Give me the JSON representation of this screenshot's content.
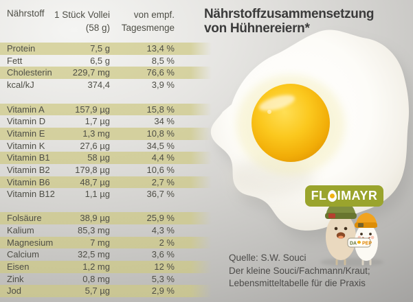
{
  "title": {
    "line1": "Nährstoffzusammensetzung",
    "line2": "von Hühnereiern*"
  },
  "table": {
    "header": {
      "nutrient": "Nährstoff",
      "amount_line1": "1 Stück Vollei",
      "amount_line2": "(58 g)",
      "daily_line1": "von empf.",
      "daily_line2": "Tagesmenge"
    },
    "groups": [
      {
        "name": "macros",
        "rows": [
          {
            "label": "Protein",
            "value": "7,5 g",
            "percent": "13,4 %"
          },
          {
            "label": "Fett",
            "value": "6,5 g",
            "percent": "8,5 %"
          },
          {
            "label": "Cholesterin",
            "value": "229,7 mg",
            "percent": "76,6 %"
          },
          {
            "label": "kcal/kJ",
            "value": "374,4",
            "percent": "3,9 %"
          }
        ]
      },
      {
        "name": "vitamins",
        "rows": [
          {
            "label": "Vitamin A",
            "value": "157,9 µg",
            "percent": "15,8 %"
          },
          {
            "label": "Vitamin D",
            "value": "1,7 µg",
            "percent": "34 %"
          },
          {
            "label": "Vitamin E",
            "value": "1,3 mg",
            "percent": "10,8 %"
          },
          {
            "label": "Vitamin K",
            "value": "27,6 µg",
            "percent": "34,5 %"
          },
          {
            "label": "Vitamin B1",
            "value": "58 µg",
            "percent": "4,4 %"
          },
          {
            "label": "Vitamin B2",
            "value": "179,8 µg",
            "percent": "10,6 %"
          },
          {
            "label": "Vitamin B6",
            "value": "48,7 µg",
            "percent": "2,7 %"
          },
          {
            "label": "Vitamin B12",
            "value": "1,1 µg",
            "percent": "36,7 %"
          }
        ]
      },
      {
        "name": "minerals",
        "rows": [
          {
            "label": "Folsäure",
            "value": "38,9 µg",
            "percent": "25,9 %"
          },
          {
            "label": "Kalium",
            "value": "85,3 mg",
            "percent": "4,3 %"
          },
          {
            "label": "Magnesium",
            "value": "7 mg",
            "percent": "2 %"
          },
          {
            "label": "Calcium",
            "value": "32,5 mg",
            "percent": "3,6 %"
          },
          {
            "label": "Eisen",
            "value": "1,2 mg",
            "percent": "12 %"
          },
          {
            "label": "Zink",
            "value": "0,8 mg",
            "percent": "5,3 %"
          },
          {
            "label": "Jod",
            "value": "5,7 µg",
            "percent": "2,9 %"
          }
        ]
      }
    ]
  },
  "chart_data": {
    "type": "table",
    "title": "Nährstoffzusammensetzung von Hühnereiern*",
    "columns": [
      "Nährstoff",
      "1 Stück Vollei (58 g)",
      "von empf. Tagesmenge"
    ],
    "rows": [
      [
        "Protein",
        "7,5 g",
        "13,4 %"
      ],
      [
        "Fett",
        "6,5 g",
        "8,5 %"
      ],
      [
        "Cholesterin",
        "229,7 mg",
        "76,6 %"
      ],
      [
        "kcal/kJ",
        "374,4",
        "3,9 %"
      ],
      [
        "Vitamin A",
        "157,9 µg",
        "15,8 %"
      ],
      [
        "Vitamin D",
        "1,7 µg",
        "34 %"
      ],
      [
        "Vitamin E",
        "1,3 mg",
        "10,8 %"
      ],
      [
        "Vitamin K",
        "27,6 µg",
        "34,5 %"
      ],
      [
        "Vitamin B1",
        "58 µg",
        "4,4 %"
      ],
      [
        "Vitamin B2",
        "179,8 µg",
        "10,6 %"
      ],
      [
        "Vitamin B6",
        "48,7 µg",
        "2,7 %"
      ],
      [
        "Vitamin B12",
        "1,1 µg",
        "36,7 %"
      ],
      [
        "Folsäure",
        "38,9 µg",
        "25,9 %"
      ],
      [
        "Kalium",
        "85,3 mg",
        "4,3 %"
      ],
      [
        "Magnesium",
        "7 mg",
        "2 %"
      ],
      [
        "Calcium",
        "32,5 mg",
        "3,6 %"
      ],
      [
        "Eisen",
        "1,2 mg",
        "12 %"
      ],
      [
        "Zink",
        "0,8 mg",
        "5,3 %"
      ],
      [
        "Jod",
        "5,7 µg",
        "2,9 %"
      ]
    ]
  },
  "source": {
    "line1": "Quelle: S.W. Souci",
    "line2": "Der kleine Souci/Fachmann/Kraut;",
    "line3": "Lebensmitteltabelle für die Praxis"
  },
  "logo": {
    "brand_full": "FLOIMAYR",
    "brand_part1": "FL",
    "brand_part2": "IMAYR",
    "badge_left": "DA",
    "badge_right": "PEP"
  },
  "colors": {
    "row_band": "#d6d2a0",
    "logo_green": "#9aa42d",
    "beanie_green": "#7e8d3f",
    "beanie_orange": "#f1a31f",
    "yolk_yellow": "#f2b211",
    "title_gray": "#3b3b3b"
  }
}
